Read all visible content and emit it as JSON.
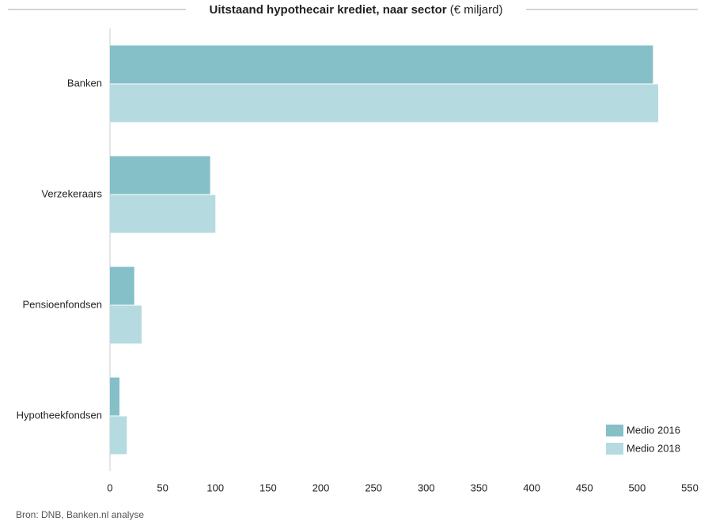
{
  "chart_data": {
    "type": "hbar",
    "title": "Uitstaand hypothecair krediet, naar sector",
    "unit": "(€ miljard)",
    "categories": [
      "Banken",
      "Verzekeraars",
      "Pensioenfondsen",
      "Hypotheekfondsen"
    ],
    "series": [
      {
        "name": "Medio 2016",
        "color": "#85bfc8",
        "values": [
          515,
          95,
          23,
          9
        ]
      },
      {
        "name": "Medio 2018",
        "color": "#b5dbe1",
        "values": [
          520,
          100,
          30,
          16
        ]
      }
    ],
    "xlim": [
      0,
      550
    ],
    "xticks": [
      0,
      50,
      100,
      150,
      200,
      250,
      300,
      350,
      400,
      450,
      500,
      550
    ],
    "grid": false,
    "legend": "bottom-right",
    "source": "Bron: DNB, Banken.nl analyse"
  }
}
